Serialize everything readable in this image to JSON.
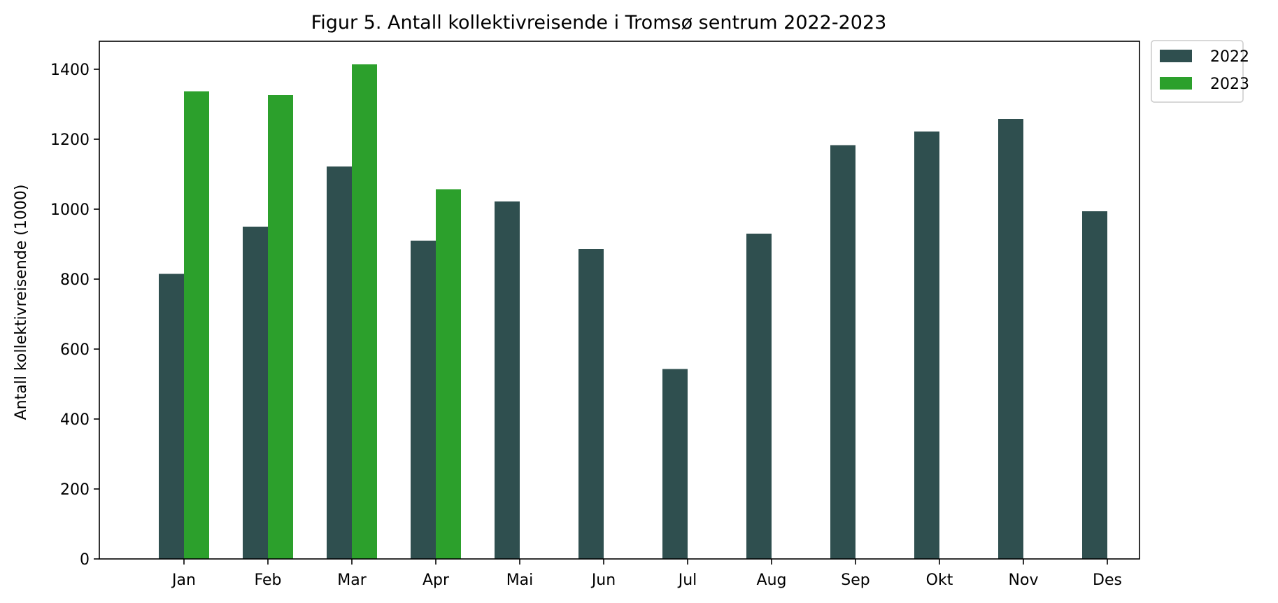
{
  "chart_data": {
    "type": "bar",
    "title": "Figur 5. Antall kollektivreisende i Tromsø sentrum 2022-2023",
    "xlabel": "",
    "ylabel": "Antall kollektivreisende (1000)",
    "categories": [
      "Jan",
      "Feb",
      "Mar",
      "Apr",
      "Mai",
      "Jun",
      "Jul",
      "Aug",
      "Sep",
      "Okt",
      "Nov",
      "Des"
    ],
    "series": [
      {
        "name": "2022",
        "color": "#2f4f4f",
        "values": [
          815,
          950,
          1122,
          910,
          1022,
          886,
          543,
          930,
          1183,
          1222,
          1258,
          994
        ]
      },
      {
        "name": "2023",
        "color": "#2ca02c",
        "values": [
          1337,
          1326,
          1414,
          1057,
          null,
          null,
          null,
          null,
          null,
          null,
          null,
          null
        ]
      }
    ],
    "ylim": [
      0,
      1480
    ],
    "yticks": [
      0,
      200,
      400,
      600,
      800,
      1000,
      1200,
      1400
    ],
    "grid": false,
    "legend_position": "outside-top-right"
  }
}
